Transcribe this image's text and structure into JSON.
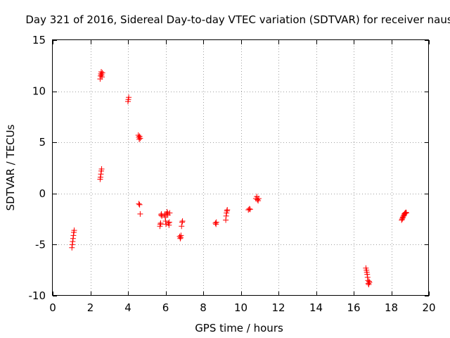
{
  "chart_data": {
    "type": "scatter",
    "title": "Day 321 of 2016, Sidereal Day-to-day VTEC variation (SDTVAR) for receiver naus",
    "xlabel": "GPS time / hours",
    "ylabel": "SDTVAR / TECUs",
    "xlim": [
      0,
      20
    ],
    "ylim": [
      -10,
      15
    ],
    "xticks": [
      0,
      2,
      4,
      6,
      8,
      10,
      12,
      14,
      16,
      18,
      20
    ],
    "yticks": [
      -10,
      -5,
      0,
      5,
      10,
      15
    ],
    "xtick_labels": [
      "0",
      "2",
      "4",
      "6",
      "8",
      "10",
      "12",
      "14",
      "16",
      "18",
      "20"
    ],
    "ytick_labels": [
      "-10",
      "-5",
      "0",
      "5",
      "10",
      "15"
    ],
    "grid": true,
    "marker": "+",
    "color": "#ff0000",
    "series": [
      {
        "name": "SDTVAR",
        "points": [
          [
            1.02,
            -5.3
          ],
          [
            1.04,
            -5.0
          ],
          [
            1.06,
            -4.7
          ],
          [
            1.08,
            -4.4
          ],
          [
            1.1,
            -4.1
          ],
          [
            1.12,
            -3.8
          ],
          [
            1.14,
            -3.6
          ],
          [
            2.52,
            1.4
          ],
          [
            2.54,
            1.6
          ],
          [
            2.56,
            1.9
          ],
          [
            2.58,
            2.2
          ],
          [
            2.6,
            2.4
          ],
          [
            2.52,
            11.2
          ],
          [
            2.54,
            11.5
          ],
          [
            2.56,
            11.7
          ],
          [
            2.58,
            11.9
          ],
          [
            2.6,
            11.6
          ],
          [
            2.62,
            11.4
          ],
          [
            2.64,
            11.8
          ],
          [
            4.0,
            9.0
          ],
          [
            4.02,
            9.2
          ],
          [
            4.04,
            9.4
          ],
          [
            4.55,
            5.7
          ],
          [
            4.58,
            5.5
          ],
          [
            4.6,
            5.3
          ],
          [
            4.62,
            5.6
          ],
          [
            4.65,
            5.4
          ],
          [
            4.58,
            -1.0
          ],
          [
            4.62,
            -1.1
          ],
          [
            4.65,
            -2.0
          ],
          [
            5.7,
            -3.2
          ],
          [
            5.72,
            -3.0
          ],
          [
            5.74,
            -2.9
          ],
          [
            5.76,
            -2.1
          ],
          [
            5.78,
            -2.0
          ],
          [
            5.8,
            -2.2
          ],
          [
            5.95,
            -2.1
          ],
          [
            5.98,
            -2.3
          ],
          [
            6.0,
            -2.7
          ],
          [
            6.02,
            -3.0
          ],
          [
            6.05,
            -2.0
          ],
          [
            6.08,
            -1.8
          ],
          [
            6.1,
            -1.9
          ],
          [
            6.12,
            -2.1
          ],
          [
            6.15,
            -2.9
          ],
          [
            6.18,
            -3.1
          ],
          [
            6.2,
            -2.8
          ],
          [
            6.22,
            -1.9
          ],
          [
            6.75,
            -4.2
          ],
          [
            6.78,
            -4.4
          ],
          [
            6.8,
            -4.3
          ],
          [
            6.82,
            -4.1
          ],
          [
            6.85,
            -3.2
          ],
          [
            6.88,
            -2.8
          ],
          [
            6.9,
            -2.7
          ],
          [
            8.65,
            -2.9
          ],
          [
            8.68,
            -3.0
          ],
          [
            8.7,
            -2.8
          ],
          [
            9.2,
            -2.6
          ],
          [
            9.22,
            -2.2
          ],
          [
            9.24,
            -1.9
          ],
          [
            9.26,
            -1.7
          ],
          [
            9.28,
            -1.6
          ],
          [
            10.4,
            -1.6
          ],
          [
            10.45,
            -1.5
          ],
          [
            10.5,
            -1.55
          ],
          [
            10.8,
            -0.5
          ],
          [
            10.85,
            -0.3
          ],
          [
            10.88,
            -0.6
          ],
          [
            10.92,
            -0.7
          ],
          [
            10.95,
            -0.5
          ],
          [
            16.65,
            -7.3
          ],
          [
            16.68,
            -7.5
          ],
          [
            16.7,
            -7.7
          ],
          [
            16.72,
            -7.9
          ],
          [
            16.74,
            -8.2
          ],
          [
            16.76,
            -8.5
          ],
          [
            16.78,
            -8.8
          ],
          [
            16.8,
            -8.9
          ],
          [
            16.82,
            -8.6
          ],
          [
            16.84,
            -8.7
          ],
          [
            18.55,
            -2.6
          ],
          [
            18.58,
            -2.5
          ],
          [
            18.6,
            -2.4
          ],
          [
            18.62,
            -2.3
          ],
          [
            18.65,
            -2.2
          ],
          [
            18.68,
            -2.1
          ],
          [
            18.7,
            -2.0
          ],
          [
            18.72,
            -1.95
          ],
          [
            18.75,
            -1.9
          ],
          [
            18.78,
            -1.85
          ],
          [
            18.8,
            -1.9
          ]
        ]
      }
    ]
  }
}
